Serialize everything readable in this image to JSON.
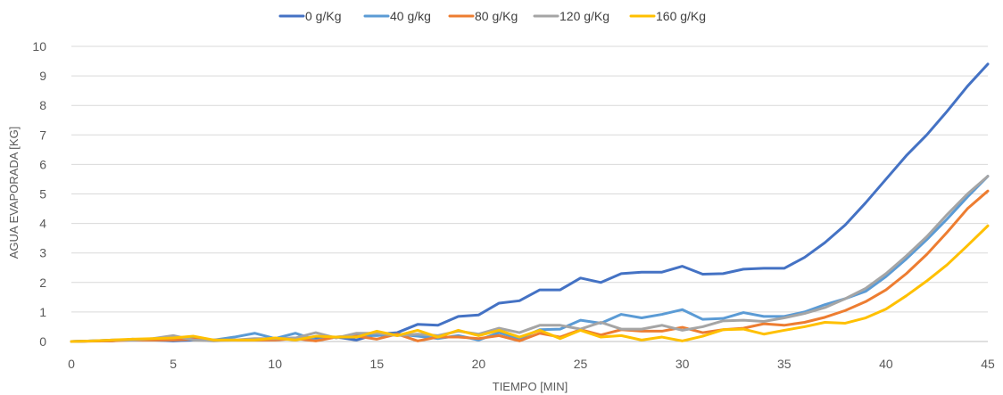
{
  "chart_data": {
    "type": "line",
    "title": "",
    "xlabel": "TIEMPO [MIN]",
    "ylabel": "AGUA EVAPORADA [KG]",
    "xlim": [
      0,
      45
    ],
    "ylim": [
      0,
      10
    ],
    "x_ticks": [
      0,
      5,
      10,
      15,
      20,
      25,
      30,
      35,
      40,
      45
    ],
    "y_ticks": [
      0,
      1,
      2,
      3,
      4,
      5,
      6,
      7,
      8,
      9,
      10
    ],
    "grid": "horizontal",
    "legend_position": "top",
    "x": [
      0,
      1,
      2,
      3,
      4,
      5,
      6,
      7,
      8,
      9,
      10,
      11,
      12,
      13,
      14,
      15,
      16,
      17,
      18,
      19,
      20,
      21,
      22,
      23,
      24,
      25,
      26,
      27,
      28,
      29,
      30,
      31,
      32,
      33,
      34,
      35,
      36,
      37,
      38,
      39,
      40,
      41,
      42,
      43,
      44,
      45
    ],
    "series": [
      {
        "name": "0 g/Kg",
        "color": "#4472C4",
        "values": [
          0,
          0.02,
          0.02,
          0.08,
          0.05,
          0.02,
          0.05,
          0.05,
          0.05,
          0.05,
          0.08,
          0.12,
          0.1,
          0.15,
          0.05,
          0.25,
          0.3,
          0.58,
          0.55,
          0.85,
          0.9,
          1.3,
          1.38,
          1.75,
          1.75,
          2.15,
          2.0,
          2.3,
          2.35,
          2.35,
          2.55,
          2.28,
          2.3,
          2.45,
          2.48,
          2.48,
          2.85,
          3.35,
          3.95,
          4.7,
          5.5,
          6.3,
          7.0,
          7.8,
          8.65,
          9.4
        ]
      },
      {
        "name": "40 g/kg",
        "color": "#5B9BD5",
        "values": [
          0,
          0.02,
          0.05,
          0.05,
          0.08,
          0.05,
          0.1,
          0.05,
          0.15,
          0.28,
          0.1,
          0.28,
          0.05,
          0.15,
          0.2,
          0.2,
          0.25,
          0.18,
          0.1,
          0.2,
          0.05,
          0.3,
          0.1,
          0.4,
          0.42,
          0.72,
          0.62,
          0.92,
          0.8,
          0.92,
          1.08,
          0.75,
          0.78,
          0.98,
          0.85,
          0.85,
          1.0,
          1.25,
          1.45,
          1.7,
          2.2,
          2.8,
          3.45,
          4.15,
          4.9,
          5.6
        ]
      },
      {
        "name": "80 g/Kg",
        "color": "#ED7D31",
        "values": [
          0,
          0.01,
          0.02,
          0.05,
          0.05,
          0.05,
          0.08,
          0.05,
          0.05,
          0.05,
          0.05,
          0.1,
          0.02,
          0.15,
          0.18,
          0.08,
          0.25,
          0.02,
          0.15,
          0.15,
          0.1,
          0.2,
          0.02,
          0.28,
          0.15,
          0.4,
          0.22,
          0.4,
          0.35,
          0.35,
          0.48,
          0.3,
          0.4,
          0.45,
          0.6,
          0.55,
          0.65,
          0.82,
          1.05,
          1.35,
          1.75,
          2.3,
          2.95,
          3.7,
          4.5,
          5.1
        ]
      },
      {
        "name": "120 g/Kg",
        "color": "#A5A5A5",
        "values": [
          0,
          0.02,
          0.05,
          0.05,
          0.1,
          0.2,
          0.05,
          0.02,
          0.05,
          0.1,
          0.1,
          0.12,
          0.3,
          0.12,
          0.28,
          0.28,
          0.2,
          0.25,
          0.2,
          0.35,
          0.25,
          0.45,
          0.3,
          0.55,
          0.55,
          0.42,
          0.65,
          0.42,
          0.42,
          0.55,
          0.38,
          0.5,
          0.7,
          0.72,
          0.68,
          0.8,
          0.95,
          1.15,
          1.45,
          1.8,
          2.3,
          2.9,
          3.55,
          4.3,
          5.0,
          5.6
        ]
      },
      {
        "name": "160 g/Kg",
        "color": "#FFC000",
        "values": [
          0,
          0.02,
          0.05,
          0.08,
          0.1,
          0.12,
          0.18,
          0.05,
          0.05,
          0.05,
          0.12,
          0.05,
          0.18,
          0.15,
          0.15,
          0.35,
          0.2,
          0.38,
          0.15,
          0.38,
          0.2,
          0.38,
          0.15,
          0.38,
          0.1,
          0.38,
          0.15,
          0.2,
          0.05,
          0.15,
          0.02,
          0.18,
          0.4,
          0.42,
          0.25,
          0.38,
          0.5,
          0.65,
          0.62,
          0.8,
          1.1,
          1.55,
          2.05,
          2.6,
          3.25,
          3.92
        ]
      }
    ]
  }
}
